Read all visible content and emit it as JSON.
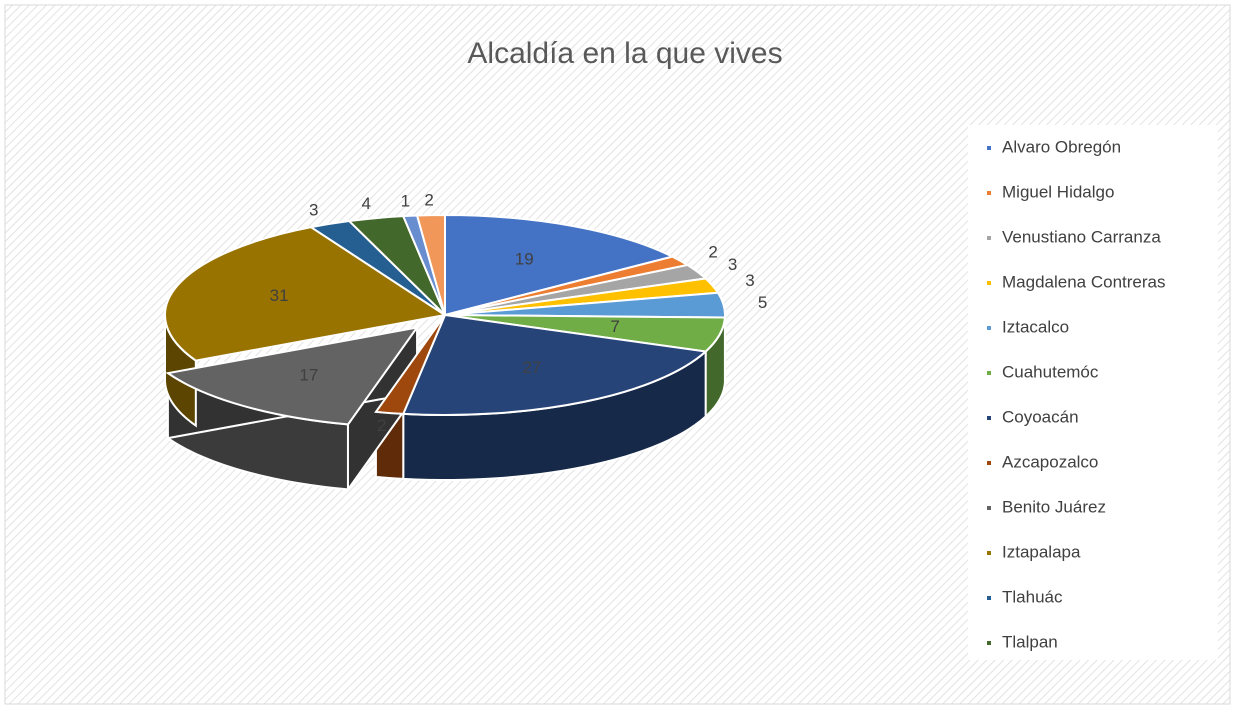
{
  "chart_data": {
    "type": "pie3d",
    "title": "Alcaldía en la que vives",
    "categories": [
      "Alvaro Obregón",
      "Miguel Hidalgo",
      "Venustiano Carranza",
      "Magdalena Contreras",
      "Iztacalco",
      "Cuahutemóc",
      "Coyoacán",
      "Azcapozalco",
      "Benito Juárez",
      "Iztapalapa",
      "Tlahuác",
      "Tlalpan",
      null,
      null
    ],
    "values": [
      19,
      2,
      3,
      3,
      5,
      7,
      27,
      2,
      17,
      31,
      3,
      4,
      1,
      2
    ],
    "colors": [
      "#4472c4",
      "#ed7d31",
      "#a5a5a5",
      "#ffc000",
      "#5b9bd5",
      "#70ad47",
      "#264478",
      "#9e480e",
      "#636363",
      "#997300",
      "#255e91",
      "#43682b",
      "#698ed0",
      "#f1975a"
    ],
    "legend": "right"
  }
}
